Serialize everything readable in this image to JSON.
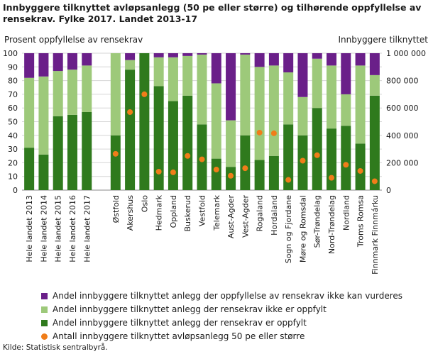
{
  "title": "Innbyggere tilknyttet avløpsanlegg (50 pe eller større) og tilhørende oppfyllelse av rensekrav. Fylke 2017. Landet 2013-17",
  "source": "Kilde: Statistisk sentralbyrå.",
  "colors": {
    "ikke_vurderes": "#6a1f89",
    "ikke_oppfylt": "#9dc97a",
    "oppfylt": "#2f7a1d",
    "antall": "#f07d19"
  },
  "chart_data": {
    "type": "bar",
    "stacked": true,
    "ylabel_left": "Prosent oppfyllelse av rensekrav",
    "ylabel_right": "Innbyggere tilknyttet",
    "ylim": [
      0,
      100
    ],
    "y2lim": [
      0,
      1000000
    ],
    "yticks": [
      "0",
      "10",
      "20",
      "30",
      "40",
      "50",
      "60",
      "70",
      "80",
      "90",
      "100"
    ],
    "y2ticks": [
      "0",
      "200 000",
      "400 000",
      "600 000",
      "800 000",
      "1 000 000"
    ],
    "grid": true,
    "legend_position": "bottom",
    "categories": [
      "Hele landet 2013",
      "Hele landet 2014",
      "Hele landet 2015",
      "Hele landet 2016",
      "Hele landet 2017",
      "Østfold",
      "Akershus",
      "Oslo",
      "Hedmark",
      "Oppland",
      "Buskerud",
      "Vestfold",
      "Telemark",
      "Aust-Agder",
      "Vest-Agder",
      "Rogaland",
      "Hordaland",
      "Sogn og Fjordane",
      "Møre og Romsdal",
      "Sør-Trøndelag",
      "Nord-Trøndelag",
      "Nordland",
      "Troms Romsa",
      "Finnmark Finnmárku"
    ],
    "series": [
      {
        "name": "Andel innbyggere tilknyttet anlegg der rensekrav er oppfylt",
        "axis": "left",
        "values": [
          31,
          26,
          54,
          55,
          57,
          40,
          88,
          100,
          76,
          65,
          69,
          48,
          23,
          17,
          40,
          22,
          25,
          48,
          40,
          60,
          45,
          47,
          34,
          69
        ]
      },
      {
        "name": "Andel innbyggere tilknyttet anlegg der rensekrav ikke er oppfylt",
        "axis": "left",
        "values": [
          51,
          57,
          33,
          33,
          34,
          60,
          7,
          0,
          21,
          32,
          29,
          51,
          55,
          34,
          59,
          68,
          66,
          38,
          28,
          36,
          46,
          23,
          57,
          15
        ]
      },
      {
        "name": "Andel innbyggere tilknyttet anlegg der oppfyllelse av rensekrav ikke kan vurderes",
        "axis": "left",
        "values": [
          18,
          17,
          13,
          12,
          9,
          0,
          5,
          0,
          3,
          3,
          2,
          1,
          22,
          49,
          1,
          10,
          9,
          14,
          32,
          4,
          9,
          30,
          9,
          16
        ]
      },
      {
        "name": "Antall innbyggere tilknyttet avløpsanlegg 50 pe eller større",
        "axis": "right",
        "type": "scatter",
        "values": [
          null,
          null,
          null,
          null,
          null,
          265000,
          570000,
          700000,
          135000,
          130000,
          250000,
          225000,
          150000,
          105000,
          160000,
          420000,
          415000,
          75000,
          215000,
          255000,
          90000,
          185000,
          140000,
          65000
        ]
      }
    ]
  }
}
